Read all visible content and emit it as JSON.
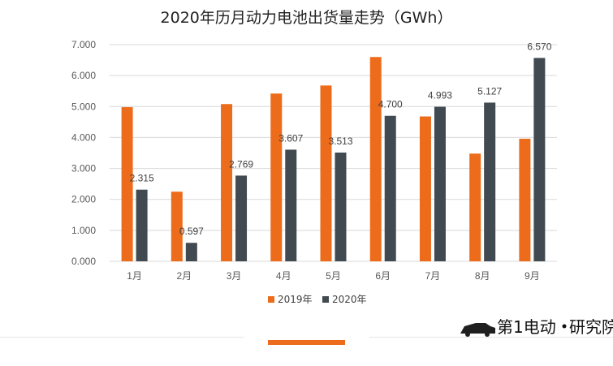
{
  "chart_data": {
    "type": "bar",
    "title": "2020年历月动力电池出货量走势（GWh）",
    "categories": [
      "1月",
      "2月",
      "3月",
      "4月",
      "5月",
      "6月",
      "7月",
      "8月",
      "9月"
    ],
    "series": [
      {
        "name": "2019年",
        "color": "#ED6C1C",
        "values": [
          4.98,
          2.25,
          5.08,
          5.42,
          5.68,
          6.6,
          4.68,
          3.48,
          3.96
        ]
      },
      {
        "name": "2020年",
        "color": "#404A50",
        "values": [
          2.315,
          0.597,
          2.769,
          3.607,
          3.513,
          4.7,
          4.993,
          5.127,
          6.57
        ],
        "data_labels": [
          "2.315",
          "0.597",
          "2.769",
          "3.607",
          "3.513",
          "4.700",
          "4.993",
          "5.127",
          "6.570"
        ]
      }
    ],
    "y_ticks": [
      "0.000",
      "1.000",
      "2.000",
      "3.000",
      "4.000",
      "5.000",
      "6.000",
      "7.000"
    ],
    "ylim": [
      0,
      7
    ],
    "grid": true,
    "legend_position": "bottom"
  },
  "watermark": {
    "brand": "第1电动",
    "brand_suffix": "研究院"
  },
  "footer": {
    "accent_color": "#ED6C1C"
  }
}
